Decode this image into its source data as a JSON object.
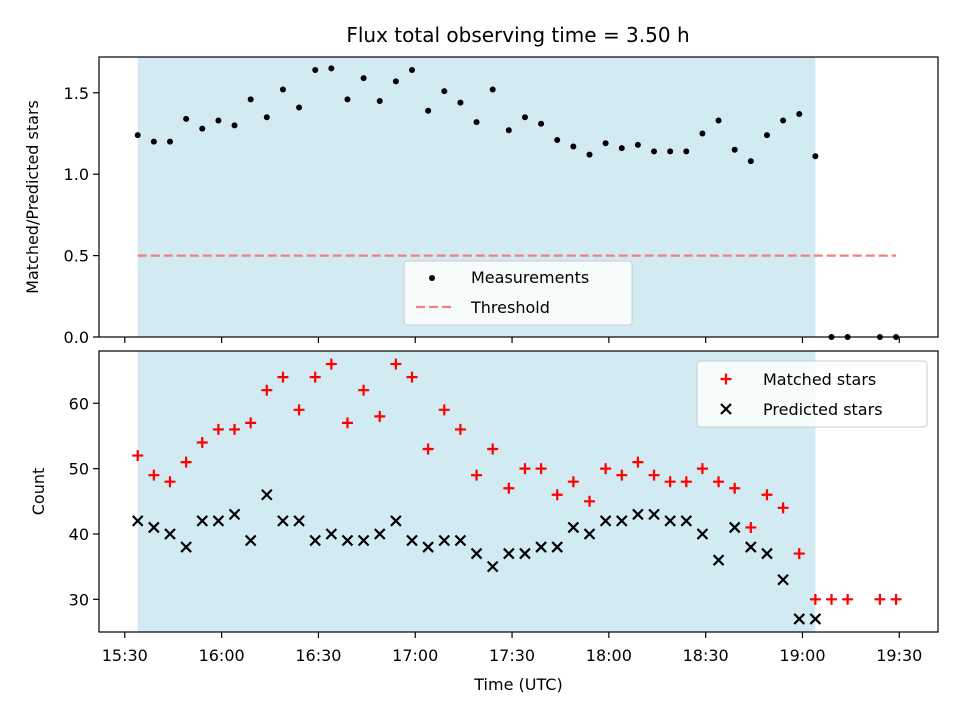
{
  "chart_data": [
    {
      "type": "scatter",
      "title": "Flux total observing time = 3.50 h",
      "xlabel": "",
      "ylabel": "Matched/Predicted stars",
      "ylim": [
        0,
        1.72
      ],
      "yticks": [
        "0.0",
        "0.5",
        "1.0",
        "1.5"
      ],
      "xlim": [
        "15:22",
        "19:42"
      ],
      "shaded_span": [
        "15:34",
        "19:04"
      ],
      "shade_color": "#add8e6",
      "legend": {
        "placement": "lower-center",
        "entries": [
          "Measurements",
          "Threshold"
        ]
      },
      "threshold": {
        "name": "Threshold",
        "value": 0.5,
        "x": [
          "15:34",
          "19:29"
        ],
        "color": "#f08080"
      },
      "series": [
        {
          "name": "Measurements",
          "marker": "dot",
          "color": "#000000",
          "points": [
            [
              "15:34",
              1.24
            ],
            [
              "15:39",
              1.2
            ],
            [
              "15:44",
              1.2
            ],
            [
              "15:49",
              1.34
            ],
            [
              "15:54",
              1.28
            ],
            [
              "15:59",
              1.33
            ],
            [
              "16:04",
              1.3
            ],
            [
              "16:09",
              1.46
            ],
            [
              "16:14",
              1.35
            ],
            [
              "16:19",
              1.52
            ],
            [
              "16:24",
              1.41
            ],
            [
              "16:29",
              1.64
            ],
            [
              "16:34",
              1.65
            ],
            [
              "16:39",
              1.46
            ],
            [
              "16:44",
              1.59
            ],
            [
              "16:49",
              1.45
            ],
            [
              "16:54",
              1.57
            ],
            [
              "16:59",
              1.64
            ],
            [
              "17:04",
              1.39
            ],
            [
              "17:09",
              1.51
            ],
            [
              "17:14",
              1.44
            ],
            [
              "17:19",
              1.32
            ],
            [
              "17:24",
              1.52
            ],
            [
              "17:29",
              1.27
            ],
            [
              "17:34",
              1.35
            ],
            [
              "17:39",
              1.31
            ],
            [
              "17:44",
              1.21
            ],
            [
              "17:49",
              1.17
            ],
            [
              "17:54",
              1.12
            ],
            [
              "17:59",
              1.19
            ],
            [
              "18:04",
              1.16
            ],
            [
              "18:09",
              1.18
            ],
            [
              "18:14",
              1.14
            ],
            [
              "18:19",
              1.14
            ],
            [
              "18:24",
              1.14
            ],
            [
              "18:29",
              1.25
            ],
            [
              "18:34",
              1.33
            ],
            [
              "18:39",
              1.15
            ],
            [
              "18:44",
              1.08
            ],
            [
              "18:49",
              1.24
            ],
            [
              "18:54",
              1.33
            ],
            [
              "18:59",
              1.37
            ],
            [
              "19:04",
              1.11
            ],
            [
              "19:09",
              0.0
            ],
            [
              "19:14",
              0.0
            ],
            [
              "19:24",
              0.0
            ],
            [
              "19:29",
              0.0
            ]
          ]
        }
      ]
    },
    {
      "type": "scatter",
      "title": "",
      "xlabel": "Time (UTC)",
      "ylabel": "Count",
      "ylim": [
        25,
        68
      ],
      "yticks": [
        "30",
        "40",
        "50",
        "60"
      ],
      "xlim": [
        "15:22",
        "19:42"
      ],
      "xticks": [
        "15:30",
        "16:00",
        "16:30",
        "17:00",
        "17:30",
        "18:00",
        "18:30",
        "19:00",
        "19:30"
      ],
      "shaded_span": [
        "15:34",
        "19:04"
      ],
      "shade_color": "#add8e6",
      "legend": {
        "placement": "upper-right",
        "entries": [
          "Matched stars",
          "Predicted stars"
        ]
      },
      "series": [
        {
          "name": "Matched stars",
          "marker": "plus",
          "color": "#ff0000",
          "points": [
            [
              "15:34",
              52
            ],
            [
              "15:39",
              49
            ],
            [
              "15:44",
              48
            ],
            [
              "15:49",
              51
            ],
            [
              "15:54",
              54
            ],
            [
              "15:59",
              56
            ],
            [
              "16:04",
              56
            ],
            [
              "16:09",
              57
            ],
            [
              "16:14",
              62
            ],
            [
              "16:19",
              64
            ],
            [
              "16:24",
              59
            ],
            [
              "16:29",
              64
            ],
            [
              "16:34",
              66
            ],
            [
              "16:39",
              57
            ],
            [
              "16:44",
              62
            ],
            [
              "16:49",
              58
            ],
            [
              "16:54",
              66
            ],
            [
              "16:59",
              64
            ],
            [
              "17:04",
              53
            ],
            [
              "17:09",
              59
            ],
            [
              "17:14",
              56
            ],
            [
              "17:19",
              49
            ],
            [
              "17:24",
              53
            ],
            [
              "17:29",
              47
            ],
            [
              "17:34",
              50
            ],
            [
              "17:39",
              50
            ],
            [
              "17:44",
              46
            ],
            [
              "17:49",
              48
            ],
            [
              "17:54",
              45
            ],
            [
              "17:59",
              50
            ],
            [
              "18:04",
              49
            ],
            [
              "18:09",
              51
            ],
            [
              "18:14",
              49
            ],
            [
              "18:19",
              48
            ],
            [
              "18:24",
              48
            ],
            [
              "18:29",
              50
            ],
            [
              "18:34",
              48
            ],
            [
              "18:39",
              47
            ],
            [
              "18:44",
              41
            ],
            [
              "18:49",
              46
            ],
            [
              "18:54",
              44
            ],
            [
              "18:59",
              37
            ],
            [
              "19:04",
              30
            ],
            [
              "19:09",
              30
            ],
            [
              "19:14",
              30
            ],
            [
              "19:24",
              30
            ],
            [
              "19:29",
              30
            ]
          ]
        },
        {
          "name": "Predicted stars",
          "marker": "x",
          "color": "#000000",
          "points": [
            [
              "15:34",
              42
            ],
            [
              "15:39",
              41
            ],
            [
              "15:44",
              40
            ],
            [
              "15:49",
              38
            ],
            [
              "15:54",
              42
            ],
            [
              "15:59",
              42
            ],
            [
              "16:04",
              43
            ],
            [
              "16:09",
              39
            ],
            [
              "16:14",
              46
            ],
            [
              "16:19",
              42
            ],
            [
              "16:24",
              42
            ],
            [
              "16:29",
              39
            ],
            [
              "16:34",
              40
            ],
            [
              "16:39",
              39
            ],
            [
              "16:44",
              39
            ],
            [
              "16:49",
              40
            ],
            [
              "16:54",
              42
            ],
            [
              "16:59",
              39
            ],
            [
              "17:04",
              38
            ],
            [
              "17:09",
              39
            ],
            [
              "17:14",
              39
            ],
            [
              "17:19",
              37
            ],
            [
              "17:24",
              35
            ],
            [
              "17:29",
              37
            ],
            [
              "17:34",
              37
            ],
            [
              "17:39",
              38
            ],
            [
              "17:44",
              38
            ],
            [
              "17:49",
              41
            ],
            [
              "17:54",
              40
            ],
            [
              "17:59",
              42
            ],
            [
              "18:04",
              42
            ],
            [
              "18:09",
              43
            ],
            [
              "18:14",
              43
            ],
            [
              "18:19",
              42
            ],
            [
              "18:24",
              42
            ],
            [
              "18:29",
              40
            ],
            [
              "18:34",
              36
            ],
            [
              "18:39",
              41
            ],
            [
              "18:44",
              38
            ],
            [
              "18:49",
              37
            ],
            [
              "18:54",
              33
            ],
            [
              "18:59",
              27
            ],
            [
              "19:04",
              27
            ]
          ]
        }
      ]
    }
  ]
}
